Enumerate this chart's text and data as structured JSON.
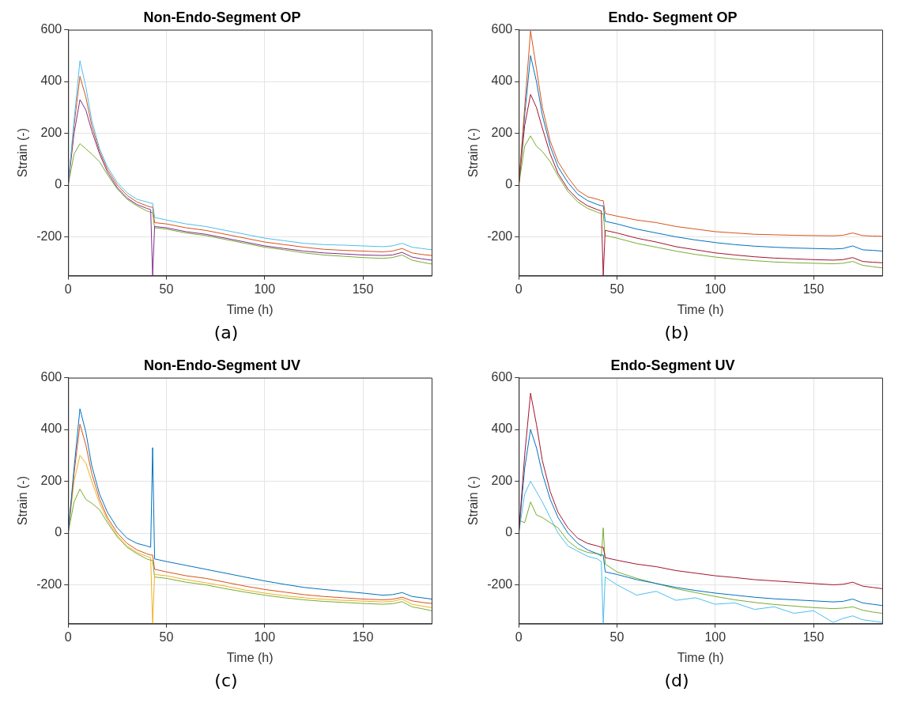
{
  "chart_data": [
    {
      "type": "line",
      "title": "Non-Endo-Segment OP",
      "xlabel": "Time (h)",
      "ylabel": "Strain (-)",
      "annotations": [
        "(a)"
      ],
      "xlim": [
        0,
        185
      ],
      "ylim": [
        -350,
        600
      ],
      "xticks": [
        0,
        50,
        100,
        150
      ],
      "yticks": [
        -200,
        0,
        200,
        400,
        600
      ],
      "grid": true,
      "marker": "none",
      "x": [
        0,
        3,
        6,
        9,
        12,
        16,
        20,
        25,
        30,
        35,
        40,
        42,
        43,
        44,
        50,
        60,
        70,
        80,
        90,
        100,
        110,
        120,
        130,
        140,
        150,
        160,
        165,
        170,
        175,
        180,
        185
      ],
      "series": [
        {
          "color": "#4dbeee",
          "values": [
            0,
            250,
            480,
            380,
            250,
            140,
            70,
            10,
            -30,
            -55,
            -65,
            -70,
            -70,
            -125,
            -135,
            -150,
            -160,
            -175,
            -190,
            -205,
            -215,
            -225,
            -230,
            -232,
            -235,
            -238,
            -235,
            -225,
            -240,
            -245,
            -250
          ]
        },
        {
          "color": "#d95319",
          "values": [
            0,
            230,
            420,
            340,
            230,
            130,
            60,
            0,
            -40,
            -65,
            -80,
            -85,
            -85,
            -145,
            -150,
            -165,
            -175,
            -190,
            -205,
            -220,
            -230,
            -240,
            -248,
            -252,
            -255,
            -258,
            -255,
            -245,
            -262,
            -268,
            -272
          ]
        },
        {
          "color": "#7e2f8e",
          "values": [
            0,
            200,
            330,
            290,
            210,
            120,
            50,
            -10,
            -50,
            -75,
            -90,
            -95,
            -350,
            -160,
            -165,
            -180,
            -190,
            -205,
            -220,
            -235,
            -245,
            -255,
            -262,
            -266,
            -270,
            -272,
            -270,
            -260,
            -278,
            -285,
            -290
          ]
        },
        {
          "color": "#77ac30",
          "values": [
            0,
            120,
            160,
            140,
            120,
            90,
            40,
            -15,
            -55,
            -80,
            -100,
            -105,
            -105,
            -165,
            -170,
            -185,
            -195,
            -210,
            -225,
            -240,
            -250,
            -262,
            -270,
            -275,
            -280,
            -283,
            -280,
            -270,
            -290,
            -298,
            -305
          ]
        }
      ]
    },
    {
      "type": "line",
      "title": "Endo- Segment OP",
      "xlabel": "Time (h)",
      "ylabel": "Strain (-)",
      "annotations": [
        "(b)"
      ],
      "xlim": [
        0,
        185
      ],
      "ylim": [
        -350,
        600
      ],
      "xticks": [
        0,
        50,
        100,
        150
      ],
      "yticks": [
        -200,
        0,
        200,
        400,
        600
      ],
      "grid": true,
      "marker": "none",
      "x": [
        0,
        3,
        6,
        9,
        12,
        16,
        20,
        25,
        30,
        35,
        40,
        42,
        43,
        44,
        50,
        60,
        70,
        80,
        90,
        100,
        110,
        120,
        130,
        140,
        150,
        160,
        165,
        170,
        175,
        180,
        185
      ],
      "series": [
        {
          "color": "#d95319",
          "values": [
            0,
            300,
            595,
            450,
            300,
            170,
            90,
            30,
            -20,
            -45,
            -55,
            -60,
            -60,
            -110,
            -120,
            -135,
            -145,
            -160,
            -170,
            -180,
            -185,
            -190,
            -192,
            -194,
            -195,
            -196,
            -194,
            -185,
            -195,
            -197,
            -198
          ]
        },
        {
          "color": "#0072bd",
          "values": [
            0,
            270,
            500,
            400,
            270,
            150,
            70,
            10,
            -35,
            -60,
            -75,
            -80,
            -80,
            -140,
            -150,
            -170,
            -185,
            -200,
            -212,
            -222,
            -230,
            -236,
            -240,
            -243,
            -245,
            -247,
            -245,
            -235,
            -250,
            -252,
            -255
          ]
        },
        {
          "color": "#a2142f",
          "values": [
            0,
            230,
            350,
            300,
            220,
            120,
            45,
            -15,
            -55,
            -80,
            -95,
            -100,
            -350,
            -175,
            -185,
            -205,
            -220,
            -238,
            -250,
            -262,
            -270,
            -277,
            -282,
            -285,
            -288,
            -290,
            -288,
            -280,
            -295,
            -298,
            -300
          ]
        },
        {
          "color": "#77ac30",
          "values": [
            0,
            150,
            190,
            150,
            130,
            90,
            35,
            -25,
            -65,
            -90,
            -105,
            -110,
            -110,
            -195,
            -205,
            -225,
            -240,
            -255,
            -268,
            -278,
            -286,
            -292,
            -297,
            -300,
            -302,
            -304,
            -302,
            -295,
            -310,
            -315,
            -320
          ]
        }
      ]
    },
    {
      "type": "line",
      "title": "Non-Endo-Segment UV",
      "xlabel": "Time (h)",
      "ylabel": "Strain (-)",
      "annotations": [
        "(c)"
      ],
      "xlim": [
        0,
        185
      ],
      "ylim": [
        -350,
        600
      ],
      "xticks": [
        0,
        50,
        100,
        150
      ],
      "yticks": [
        -200,
        0,
        200,
        400,
        600
      ],
      "grid": true,
      "marker": "none",
      "x": [
        0,
        3,
        6,
        9,
        12,
        16,
        20,
        25,
        30,
        35,
        40,
        42,
        43,
        44,
        50,
        60,
        70,
        80,
        90,
        100,
        110,
        120,
        130,
        140,
        150,
        160,
        165,
        170,
        175,
        180,
        185
      ],
      "series": [
        {
          "color": "#0072bd",
          "values": [
            0,
            250,
            480,
            390,
            260,
            150,
            80,
            20,
            -20,
            -40,
            -50,
            -55,
            330,
            -100,
            -110,
            -125,
            -140,
            -155,
            -170,
            -185,
            -198,
            -210,
            -218,
            -225,
            -232,
            -240,
            -238,
            -230,
            -245,
            -250,
            -255
          ]
        },
        {
          "color": "#d95319",
          "values": [
            0,
            230,
            420,
            340,
            230,
            130,
            60,
            0,
            -40,
            -65,
            -80,
            -85,
            -85,
            -140,
            -150,
            -165,
            -175,
            -190,
            -205,
            -218,
            -228,
            -238,
            -245,
            -250,
            -255,
            -258,
            -256,
            -248,
            -262,
            -268,
            -272
          ]
        },
        {
          "color": "#edb120",
          "values": [
            0,
            200,
            300,
            270,
            200,
            115,
            50,
            -10,
            -50,
            -75,
            -90,
            -95,
            -350,
            -160,
            -165,
            -180,
            -192,
            -205,
            -220,
            -232,
            -242,
            -250,
            -256,
            -260,
            -263,
            -266,
            -264,
            -255,
            -275,
            -282,
            -288
          ]
        },
        {
          "color": "#77ac30",
          "values": [
            0,
            120,
            170,
            130,
            115,
            90,
            40,
            -15,
            -55,
            -80,
            -100,
            -105,
            -105,
            -170,
            -175,
            -190,
            -200,
            -215,
            -228,
            -240,
            -250,
            -258,
            -264,
            -268,
            -272,
            -275,
            -273,
            -265,
            -285,
            -292,
            -300
          ]
        }
      ]
    },
    {
      "type": "line",
      "title": "Endo-Segment UV",
      "xlabel": "Time (h)",
      "ylabel": "Strain (-)",
      "annotations": [
        "(d)"
      ],
      "xlim": [
        0,
        185
      ],
      "ylim": [
        -350,
        600
      ],
      "xticks": [
        0,
        50,
        100,
        150
      ],
      "yticks": [
        -200,
        0,
        200,
        400,
        600
      ],
      "grid": true,
      "marker": "none",
      "x": [
        0,
        3,
        6,
        9,
        12,
        16,
        20,
        25,
        30,
        35,
        40,
        42,
        43,
        44,
        50,
        60,
        70,
        80,
        90,
        100,
        110,
        120,
        130,
        140,
        150,
        160,
        165,
        170,
        175,
        180,
        185
      ],
      "series": [
        {
          "color": "#a2142f",
          "values": [
            0,
            300,
            540,
            420,
            280,
            160,
            80,
            20,
            -20,
            -40,
            -50,
            -55,
            -55,
            -95,
            -105,
            -120,
            -130,
            -145,
            -155,
            -165,
            -172,
            -180,
            -185,
            -190,
            -195,
            -200,
            -198,
            -190,
            -205,
            -210,
            -215
          ]
        },
        {
          "color": "#0072bd",
          "values": [
            0,
            250,
            400,
            330,
            230,
            130,
            60,
            0,
            -40,
            -65,
            -80,
            -85,
            -85,
            -150,
            -160,
            -180,
            -195,
            -210,
            -222,
            -232,
            -240,
            -248,
            -254,
            -258,
            -262,
            -266,
            -264,
            -255,
            -270,
            -275,
            -280
          ]
        },
        {
          "color": "#77ac30",
          "values": [
            50,
            40,
            120,
            70,
            60,
            40,
            20,
            -30,
            -60,
            -75,
            -80,
            -90,
            20,
            -120,
            -150,
            -175,
            -195,
            -215,
            -230,
            -245,
            -258,
            -268,
            -276,
            -282,
            -288,
            -292,
            -290,
            -285,
            -298,
            -305,
            -310
          ]
        },
        {
          "color": "#4dbeee",
          "values": [
            0,
            150,
            200,
            160,
            120,
            60,
            0,
            -50,
            -70,
            -90,
            -100,
            -110,
            -350,
            -170,
            -200,
            -240,
            -225,
            -260,
            -250,
            -275,
            -270,
            -295,
            -285,
            -310,
            -300,
            -345,
            -330,
            -320,
            -335,
            -340,
            -345
          ]
        }
      ]
    }
  ]
}
